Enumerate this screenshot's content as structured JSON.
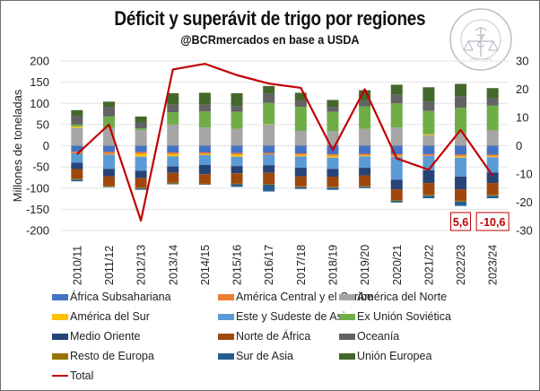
{
  "header": {
    "title": "Déficit y superávit de trigo por regiones",
    "subtitle": "@BCRmercados en base a USDA",
    "logo_text": "BOLSA DE COMERCIO DE ROSARIO"
  },
  "chart_data": {
    "type": "bar",
    "stacked": true,
    "title": "Déficit y superávit de trigo por regiones",
    "subtitle": "@BCRmercados en base a USDA",
    "xlabel": "",
    "ylabel": "Millones de toneladas",
    "ylim": [
      -200,
      200
    ],
    "yticks": [
      200,
      150,
      100,
      50,
      0,
      -50,
      -100,
      -150,
      -200
    ],
    "y2lim": [
      -30,
      30
    ],
    "y2ticks": [
      30,
      20,
      10,
      0,
      -10,
      -20,
      -30
    ],
    "grid": true,
    "legend_position": "bottom",
    "categories": [
      "2010/11",
      "2011/12",
      "2012/13",
      "2013/14",
      "2014/15",
      "2015/16",
      "2016/17",
      "2017/18",
      "2018/19",
      "2019/20",
      "2020/21",
      "2021/22",
      "2022/23",
      "2023/24"
    ],
    "series": [
      {
        "name": "África Subsahariana",
        "color": "#4472C4",
        "values": [
          -14,
          -15,
          -15,
          -16,
          -16,
          -17,
          -17,
          -18,
          -20,
          -19,
          -20,
          -20,
          -21,
          -21
        ]
      },
      {
        "name": "América Central y el Caribe",
        "color": "#ED7D31",
        "values": [
          -4,
          -5,
          -4,
          -4,
          -4,
          -4,
          -4,
          -4,
          -4,
          -4,
          -4,
          -4,
          -4,
          -4
        ]
      },
      {
        "name": "América del Norte",
        "color": "#A5A5A5",
        "values": [
          42,
          42,
          37,
          50,
          43,
          40,
          50,
          35,
          34,
          40,
          43,
          25,
          30,
          37
        ]
      },
      {
        "name": "América del Sur",
        "color": "#FFC000",
        "values": [
          3,
          -1,
          -7,
          -5,
          -2,
          -5,
          1,
          -3,
          -4,
          -2,
          -2,
          2,
          -3,
          -2
        ]
      },
      {
        "name": "Este y Sudeste de Asia",
        "color": "#5B9BD5",
        "values": [
          -22,
          -34,
          -33,
          -24,
          -23,
          -22,
          -25,
          -27,
          -27,
          -27,
          -54,
          -34,
          -45,
          -36
        ]
      },
      {
        "name": "Ex Unión Soviética",
        "color": "#70AD47",
        "values": [
          5,
          27,
          4,
          29,
          38,
          40,
          50,
          57,
          46,
          53,
          57,
          55,
          60,
          58
        ]
      },
      {
        "name": "Medio Oriente",
        "color": "#264478",
        "values": [
          -15,
          -17,
          -17,
          -15,
          -22,
          -17,
          -18,
          -20,
          -18,
          -18,
          -23,
          -30,
          -30,
          -25
        ]
      },
      {
        "name": "Norte de África",
        "color": "#9E480E",
        "values": [
          -23,
          -23,
          -23,
          -23,
          -22,
          -24,
          -26,
          -24,
          -24,
          -25,
          -25,
          -28,
          -27,
          -28
        ]
      },
      {
        "name": "Oceanía",
        "color": "#636363",
        "values": [
          20,
          23,
          14,
          18,
          16,
          14,
          22,
          15,
          12,
          14,
          20,
          22,
          26,
          17
        ]
      },
      {
        "name": "Resto de Europa",
        "color": "#997300",
        "values": [
          -2,
          -2,
          -2,
          -2,
          -2,
          -2,
          -2,
          -2,
          -2,
          -2,
          -2,
          -2,
          -2,
          -2
        ]
      },
      {
        "name": "Sur de Asia",
        "color": "#255E91",
        "values": [
          -4,
          -1,
          -3,
          -2,
          -1,
          -6,
          -16,
          -4,
          -5,
          -3,
          -4,
          -6,
          -10,
          -6
        ]
      },
      {
        "name": "Unión Europea",
        "color": "#43682B",
        "values": [
          14,
          12,
          14,
          27,
          28,
          30,
          18,
          18,
          16,
          24,
          24,
          34,
          30,
          24
        ]
      }
    ],
    "line_series": {
      "name": "Total",
      "axis": "right",
      "color": "#C00000",
      "values": [
        -3,
        7.5,
        -26.5,
        27,
        29,
        25,
        22,
        20.5,
        -1.5,
        20,
        -4.5,
        -8.5,
        5.6,
        -10.6
      ]
    },
    "annotations": [
      {
        "category": "2022/23",
        "text": "5,6"
      },
      {
        "category": "2023/24",
        "text": "-10,6"
      }
    ]
  }
}
